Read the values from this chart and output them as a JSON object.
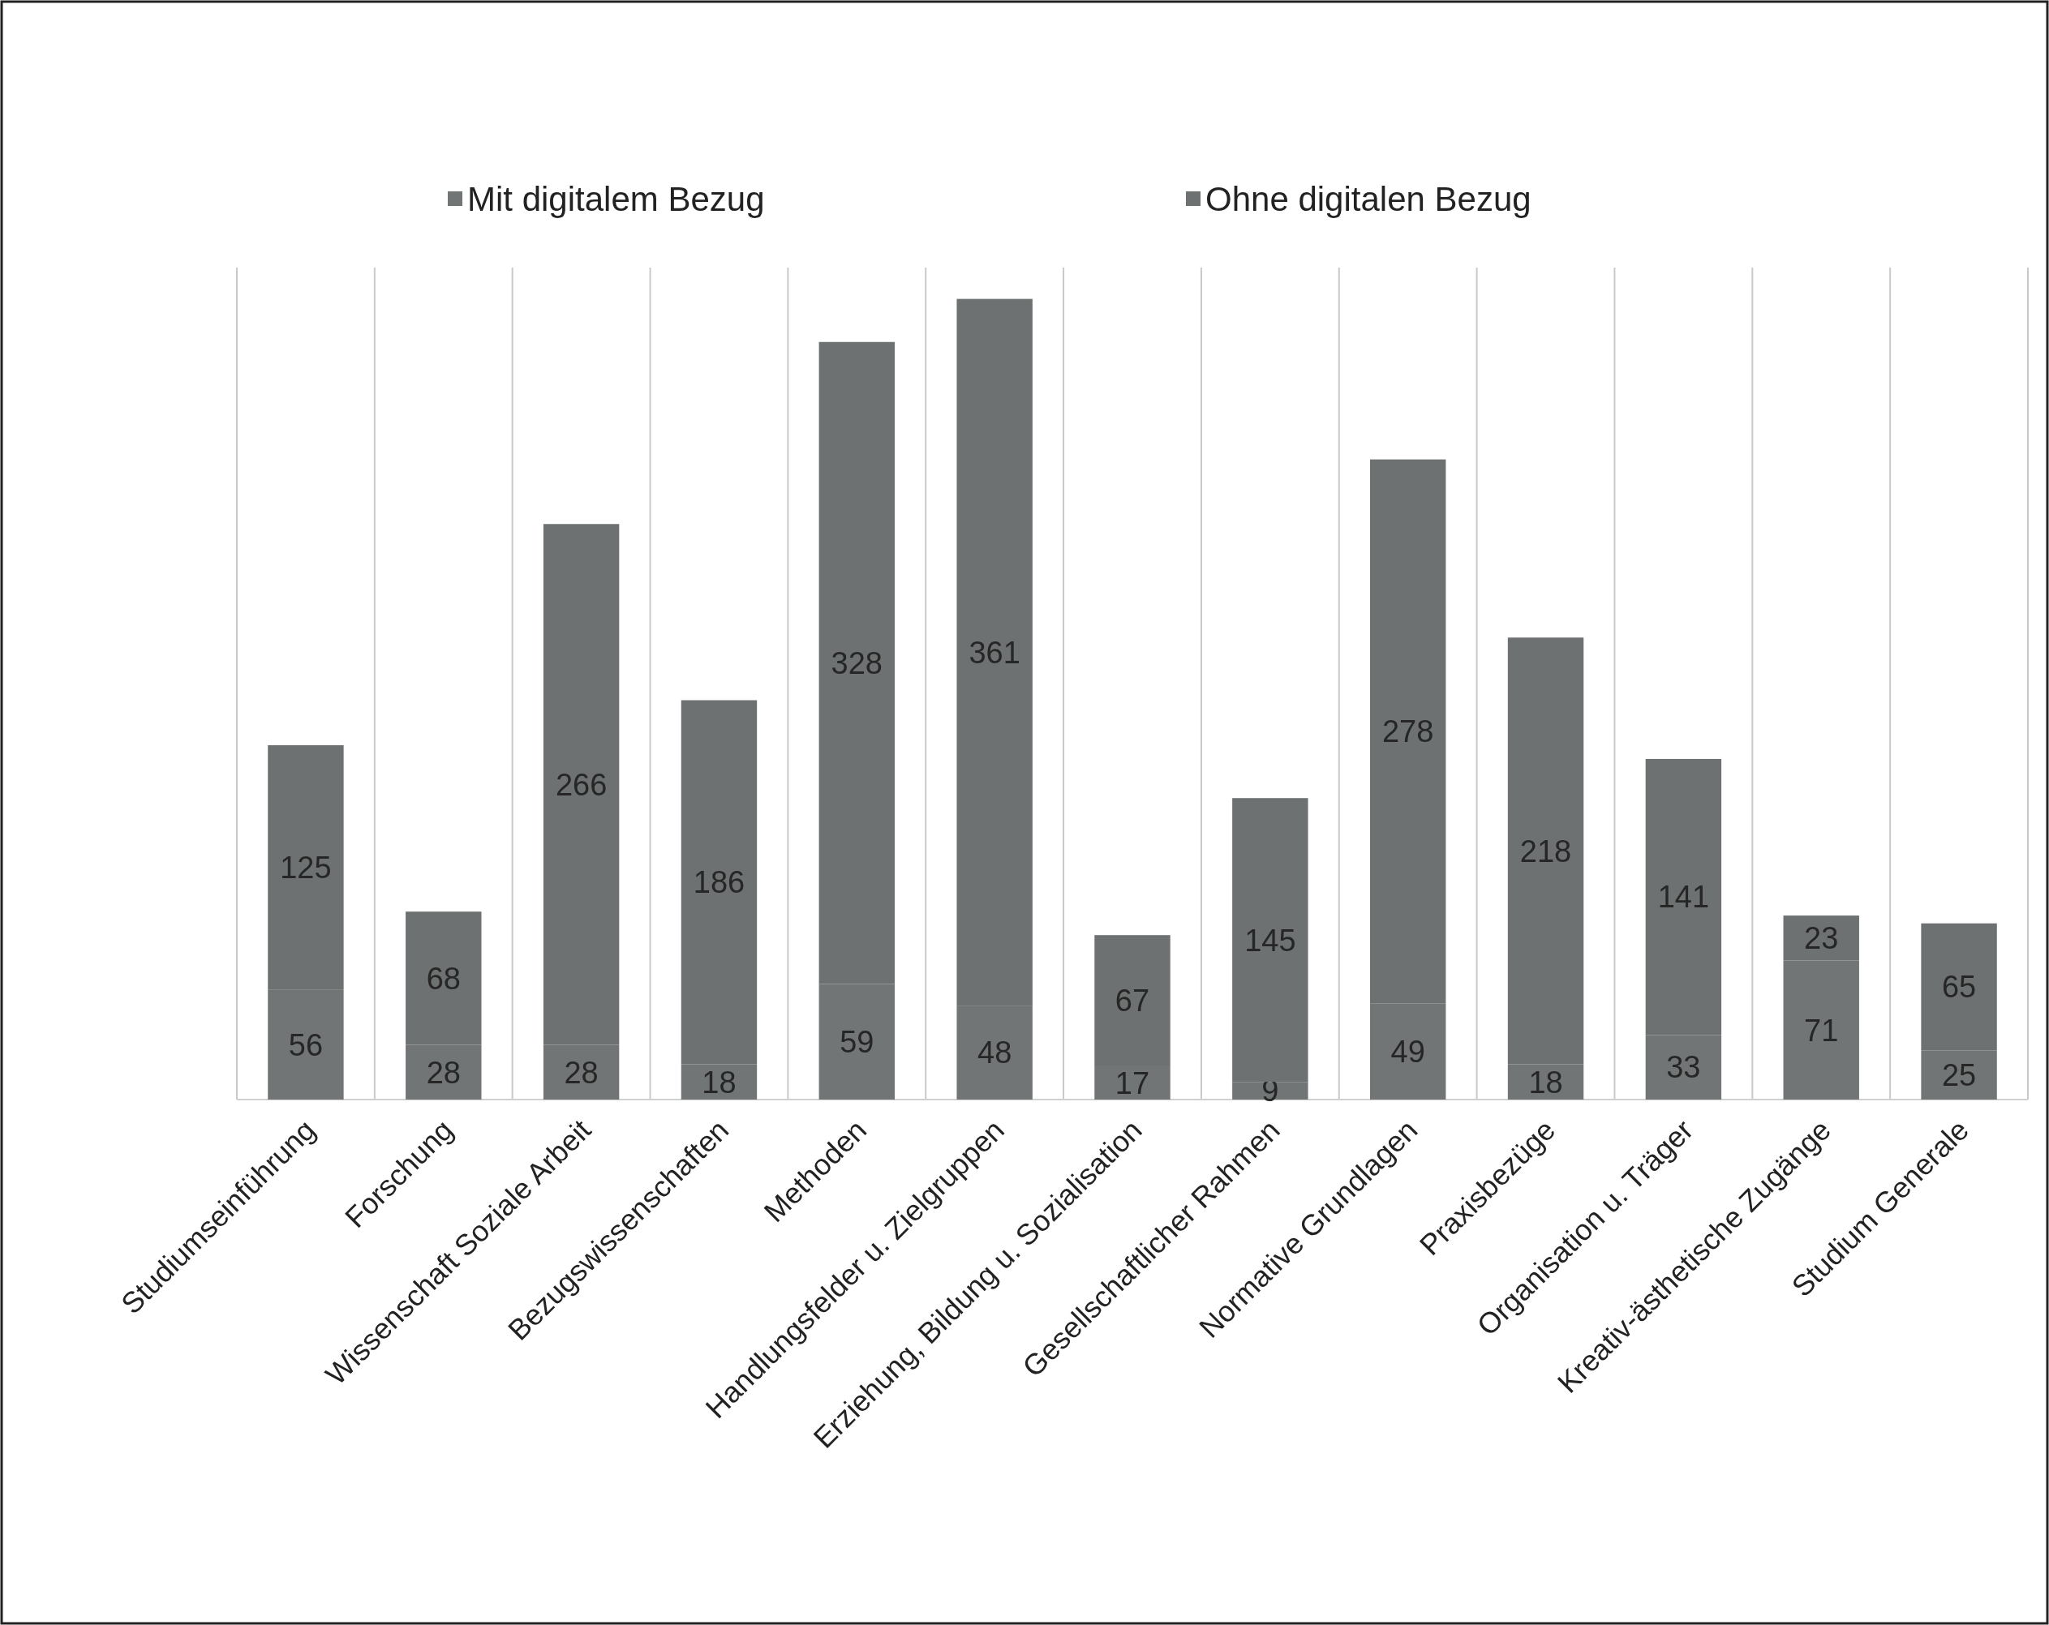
{
  "chart_data": {
    "type": "bar",
    "stacked": true,
    "categories": [
      "Studiumseinführung",
      "Forschung",
      "Wissenschaft Soziale Arbeit",
      "Bezugswissenschaften",
      "Methoden",
      "Handlungsfelder u. Zielgruppen",
      "Erziehung, Bildung u. Sozialisation",
      "Gesellschaftlicher Rahmen",
      "Normative Grundlagen",
      "Praxisbezüge",
      "Organisation u. Träger",
      "Kreativ-ästhetische Zugänge",
      "Studium Generale"
    ],
    "series": [
      {
        "name": "Mit digitalem Bezug",
        "color": "#727575",
        "values": [
          56,
          28,
          28,
          18,
          59,
          48,
          17,
          9,
          49,
          18,
          33,
          71,
          25
        ]
      },
      {
        "name": "Ohne digitalen Bezug",
        "color": "#6e7171",
        "values": [
          125,
          68,
          266,
          186,
          328,
          361,
          67,
          145,
          278,
          218,
          141,
          23,
          65
        ]
      }
    ],
    "ylim": [
      0,
      425
    ],
    "data_labels": true,
    "grid": "x",
    "legend": "top",
    "tick_labels": "x"
  }
}
